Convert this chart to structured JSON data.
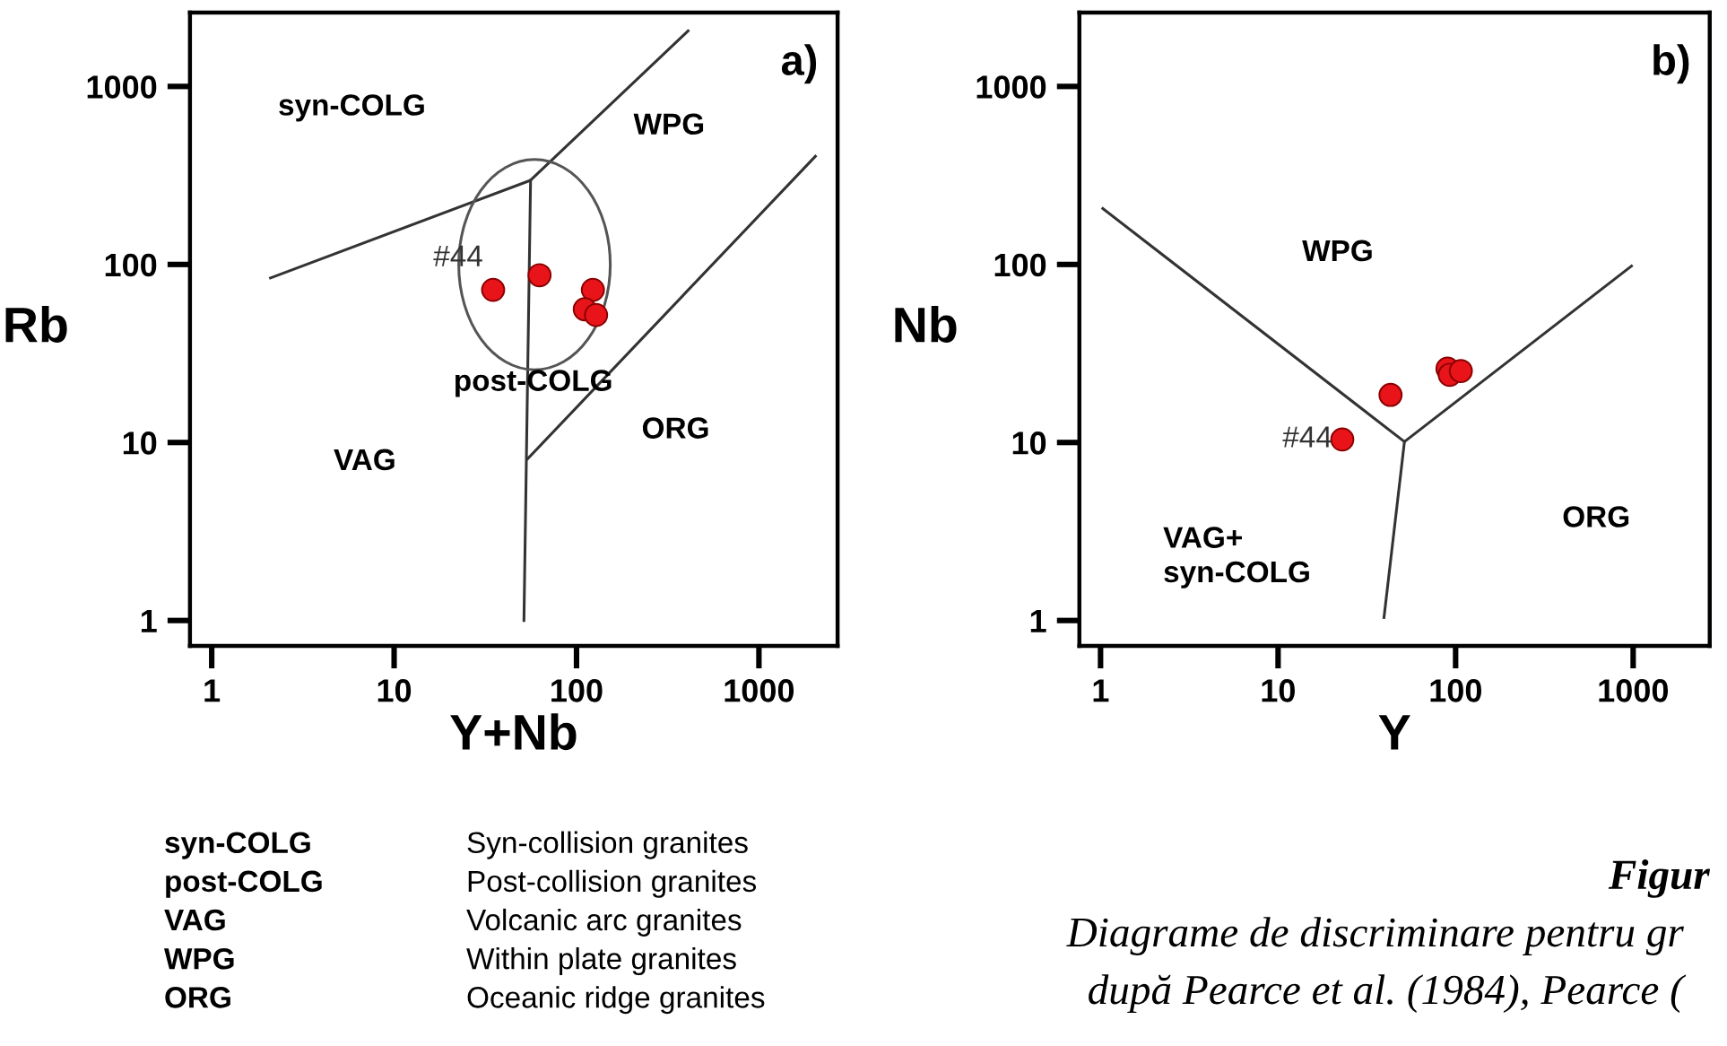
{
  "chart_data": [
    {
      "type": "scatter",
      "title": "a)",
      "xlabel": "Y+Nb",
      "ylabel": "Rb",
      "log": "xy",
      "xlim": [
        0.76,
        2700
      ],
      "ylim": [
        0.72,
        2600
      ],
      "xticks": [
        1,
        10,
        100,
        1000
      ],
      "yticks": [
        1,
        10,
        100,
        1000
      ],
      "grid": false,
      "series": [
        {
          "type": "line",
          "color": "#333333",
          "x": [
            2.1,
            56,
            409
          ],
          "values": [
            84,
            297,
            2050
          ]
        },
        {
          "type": "line",
          "color": "#333333",
          "x": [
            51.5,
            56
          ],
          "values": [
            1,
            297
          ]
        },
        {
          "type": "line",
          "color": "#333333",
          "x": [
            54,
            2040
          ],
          "values": [
            8.1,
            405
          ]
        },
        {
          "color": "#e8141a",
          "marker": "circle",
          "x": [
            34.9,
            62.7,
            123,
            111,
            128
          ],
          "values": [
            72,
            87,
            72,
            56,
            52
          ]
        }
      ],
      "annotations": [
        "syn-COLG",
        "WPG",
        "post-COLG",
        "ORG",
        "VAG",
        {
          "text": "#44",
          "x": 34.9,
          "y": 72
        },
        "syn-COLG",
        "post-COLG",
        "VAG",
        "WPG",
        "ORG",
        "Syn-collision granites",
        "Post-collision granites",
        "Volcanic arc granites",
        "Within plate granites",
        "Oceanic ridge granites"
      ]
    },
    {
      "type": "scatter",
      "title": "b)",
      "xlabel": "Y",
      "ylabel": "Nb",
      "log": "xy",
      "xlim": [
        0.76,
        2700
      ],
      "ylim": [
        0.72,
        2600
      ],
      "xticks": [
        1,
        10,
        100,
        1000
      ],
      "yticks": [
        1,
        10,
        100,
        1000
      ],
      "grid": false,
      "series": [
        {
          "type": "line",
          "color": "#333333",
          "x": [
            1.03,
            51.5,
            979
          ],
          "values": [
            206,
            10.1,
            98
          ]
        },
        {
          "type": "line",
          "color": "#333333",
          "x": [
            39.5,
            51.5
          ],
          "values": [
            1.04,
            10.1
          ]
        },
        {
          "color": "#e8141a",
          "marker": "circle",
          "x": [
            23,
            43,
            90,
            92.6,
            107
          ],
          "values": [
            10.4,
            18.5,
            26,
            24,
            25.2
          ]
        }
      ],
      "annotations": [
        "WPG",
        "VAG+\nsyn-COLG",
        "ORG",
        {
          "text": "#44",
          "x": 23,
          "y": 10.4
        },
        "Figur",
        "Diagrame de discriminare pentru gr",
        "după Pearce et al. (1984), Pearce ("
      ]
    }
  ]
}
